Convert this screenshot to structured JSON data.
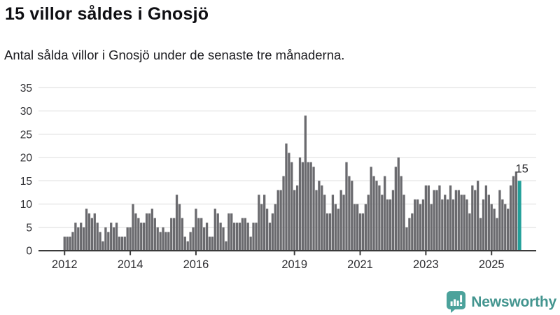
{
  "header": {
    "title": "15 villor såldes i Gnosjö",
    "subtitle": "Antal sålda villor i Gnosjö under de senaste tre månaderna."
  },
  "footer": {
    "brand": "Newsworthy",
    "brand_icon": "bar-chart-speech-bubble"
  },
  "colors": {
    "bar": "#6a6a6e",
    "highlight": "#23a09a",
    "grid": "#e4e4e4",
    "axis": "#3a3a3a",
    "tick_text": "#2e2e32",
    "value_label": "#28282c",
    "logo": "#43958f",
    "logo_icon_bg": "#4ba29b"
  },
  "chart_data": {
    "type": "bar",
    "title": "15 villor såldes i Gnosjö",
    "subtitle": "Antal sålda villor i Gnosjö under de senaste tre månaderna.",
    "frequency": "monthly",
    "start_period": "2012-01",
    "end_period": "2025-11",
    "values": [
      3,
      3,
      3,
      4,
      6,
      5,
      6,
      5,
      9,
      8,
      7,
      8,
      6,
      4,
      2,
      5,
      4,
      6,
      5,
      6,
      3,
      3,
      3,
      5,
      5,
      10,
      8,
      7,
      6,
      6,
      8,
      8,
      9,
      7,
      5,
      4,
      5,
      4,
      4,
      7,
      7,
      12,
      10,
      7,
      3,
      2,
      4,
      5,
      9,
      7,
      7,
      5,
      6,
      3,
      3,
      9,
      8,
      6,
      5,
      2,
      8,
      8,
      6,
      6,
      6,
      7,
      7,
      6,
      3,
      6,
      6,
      12,
      10,
      12,
      9,
      6,
      8,
      10,
      13,
      13,
      16,
      23,
      21,
      19,
      13,
      14,
      20,
      19,
      29,
      19,
      19,
      18,
      13,
      15,
      14,
      12,
      8,
      8,
      12,
      10,
      9,
      13,
      12,
      19,
      16,
      15,
      10,
      10,
      8,
      8,
      10,
      12,
      18,
      16,
      15,
      14,
      12,
      16,
      11,
      11,
      13,
      18,
      20,
      16,
      12,
      5,
      7,
      8,
      11,
      11,
      10,
      11,
      14,
      14,
      10,
      13,
      13,
      14,
      11,
      12,
      11,
      14,
      11,
      13,
      13,
      12,
      12,
      11,
      8,
      14,
      13,
      15,
      7,
      11,
      14,
      12,
      10,
      9,
      7,
      13,
      11,
      10,
      9,
      14,
      16,
      17,
      15
    ],
    "highlight_last_bar": true,
    "last_value_label": "15",
    "x_tick_labels": [
      "2012",
      "2014",
      "2016",
      "2019",
      "2021",
      "2023",
      "2025"
    ],
    "x_tick_month_indices": [
      0,
      24,
      48,
      84,
      108,
      132,
      156
    ],
    "y_tick_labels": [
      "0",
      "5",
      "10",
      "15",
      "20",
      "25",
      "30",
      "35"
    ],
    "y_ticks": [
      0,
      5,
      10,
      15,
      20,
      25,
      30,
      35
    ],
    "ylim": [
      0,
      35
    ],
    "grid": true,
    "legend": "none",
    "ylabel": "",
    "xlabel": ""
  }
}
